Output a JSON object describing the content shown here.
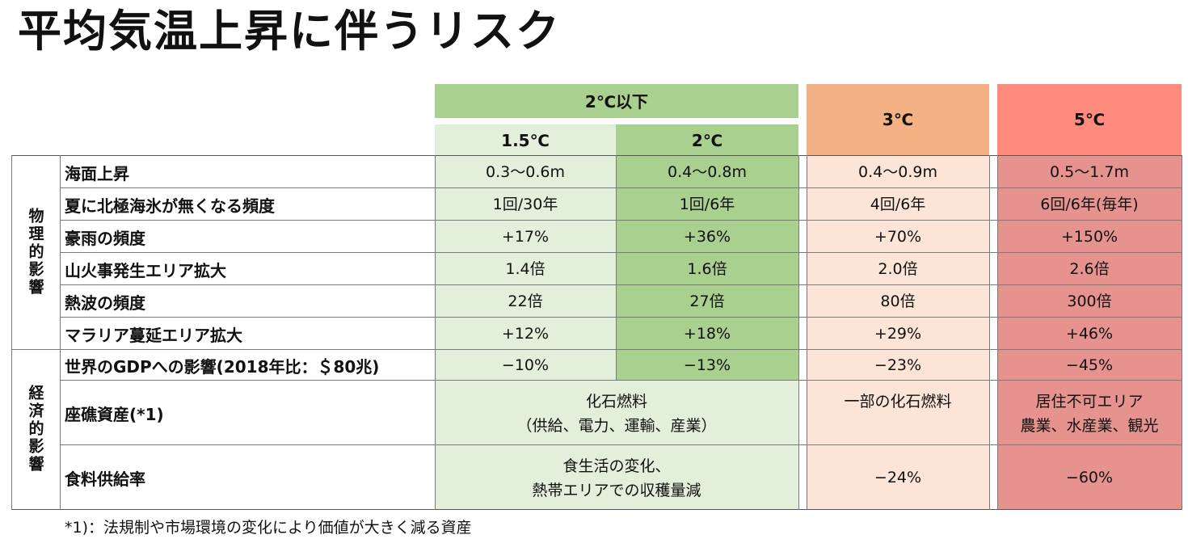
{
  "title": "平均気温上昇に伴うリスク",
  "colors": {
    "green_dark": "#a9d08e",
    "green_light": "#e2efda",
    "orange_header": "#f4b183",
    "orange_light": "#fce4d6",
    "red_header": "#fe8b7c",
    "red_body": "#e6938f"
  },
  "header": {
    "group_2c": "2℃以下",
    "col_15": "1.5℃",
    "col_2": "2℃",
    "col_3": "3℃",
    "col_5": "5℃"
  },
  "categories": {
    "physical": "物理的影響",
    "economic": "経済的影響"
  },
  "rows": [
    {
      "label": "海面上昇",
      "c15": "0.3〜0.6m",
      "c2": "0.4〜0.8m",
      "c3": "0.4〜0.9m",
      "c5": "0.5〜1.7m"
    },
    {
      "label": "夏に北極海氷が無くなる頻度",
      "c15": "1回/30年",
      "c2": "1回/6年",
      "c3": "4回/6年",
      "c5": "6回/6年(毎年)"
    },
    {
      "label": "豪雨の頻度",
      "c15": "+17%",
      "c2": "+36%",
      "c3": "+70%",
      "c5": "+150%"
    },
    {
      "label": "山火事発生エリア拡大",
      "c15": "1.4倍",
      "c2": "1.6倍",
      "c3": "2.0倍",
      "c5": "2.6倍"
    },
    {
      "label": "熱波の頻度",
      "c15": "22倍",
      "c2": "27倍",
      "c3": "80倍",
      "c5": "300倍"
    },
    {
      "label": "マラリア蔓延エリア拡大",
      "c15": "+12%",
      "c2": "+18%",
      "c3": "+29%",
      "c5": "+46%"
    },
    {
      "label": "世界のGDPへの影響(2018年比：＄80兆)",
      "c15": "−10%",
      "c2": "−13%",
      "c3": "−23%",
      "c5": "−45%"
    }
  ],
  "stranded": {
    "label": "座礁資産(*1)",
    "c2group_line1": "化石燃料",
    "c2group_line2": "（供給、電力、運輸、産業）",
    "c3": "一部の化石燃料",
    "c5_line1": "居住不可エリア",
    "c5_line2": "農業、水産業、観光"
  },
  "food": {
    "label": "食料供給率",
    "c2group_line1": "食生活の変化、",
    "c2group_line2": "熱帯エリアでの収穫量減",
    "c3": "−24%",
    "c5": "−60%"
  },
  "footnote": "*1)：法規制や市場環境の変化により価値が大きく減る資産"
}
